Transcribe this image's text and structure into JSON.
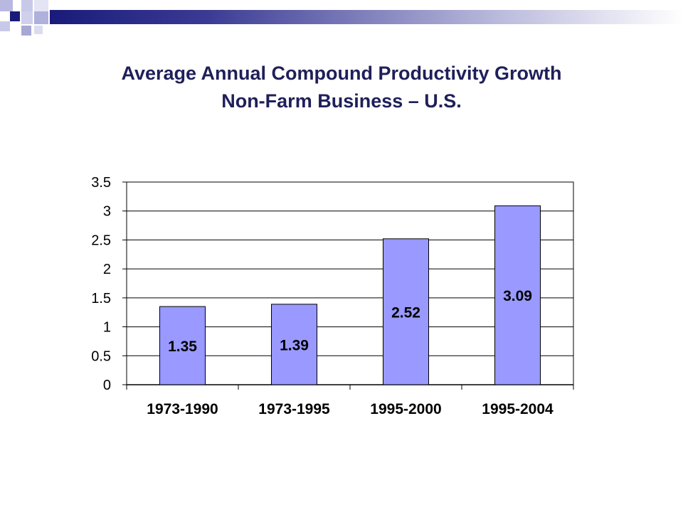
{
  "colors": {
    "bar_fill": "#9999ff",
    "bar_stroke": "#000000",
    "grid": "#000000",
    "deco_dark": "#1a1a7a",
    "deco_light": "#9a9ad0"
  },
  "chart_data": {
    "type": "bar",
    "title": "Average Annual Compound Productivity Growth",
    "subtitle": "Non-Farm Business – U.S.",
    "categories": [
      "1973-1990",
      "1973-1995",
      "1995-2000",
      "1995-2004"
    ],
    "values": [
      1.35,
      1.39,
      2.52,
      3.09
    ],
    "data_labels": [
      "1.35",
      "1.39",
      "2.52",
      "3.09"
    ],
    "yticks": [
      0,
      0.5,
      1,
      1.5,
      2,
      2.5,
      3,
      3.5
    ],
    "ytick_labels": [
      "0",
      "0.5",
      "1",
      "1.5",
      "2",
      "2.5",
      "3",
      "3.5"
    ],
    "ylim": [
      0,
      3.5
    ],
    "grid": true,
    "legend": "none"
  }
}
